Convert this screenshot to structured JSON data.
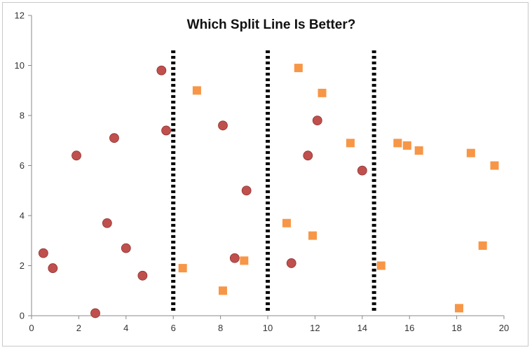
{
  "chart_data": {
    "type": "scatter",
    "title": "Which Split Line Is Better?",
    "xlabel": "",
    "ylabel": "",
    "xlim": [
      0,
      20
    ],
    "ylim": [
      0,
      12
    ],
    "x_ticks": [
      0,
      2,
      4,
      6,
      8,
      10,
      12,
      14,
      16,
      18,
      20
    ],
    "y_ticks": [
      0,
      2,
      4,
      6,
      8,
      10,
      12
    ],
    "grid": false,
    "legend": "none",
    "series": [
      {
        "marker": "circle",
        "color": "#c0504d",
        "points": [
          [
            0.5,
            2.5
          ],
          [
            0.9,
            1.9
          ],
          [
            1.9,
            6.4
          ],
          [
            2.7,
            0.1
          ],
          [
            3.2,
            3.7
          ],
          [
            3.5,
            7.1
          ],
          [
            4.0,
            2.7
          ],
          [
            4.7,
            1.6
          ],
          [
            5.5,
            9.8
          ],
          [
            5.7,
            7.4
          ],
          [
            8.1,
            7.6
          ],
          [
            8.6,
            2.3
          ],
          [
            9.1,
            5.0
          ],
          [
            11.0,
            2.1
          ],
          [
            11.7,
            6.4
          ],
          [
            12.1,
            7.8
          ],
          [
            14.0,
            5.8
          ]
        ]
      },
      {
        "marker": "square",
        "color": "#f79646",
        "points": [
          [
            6.4,
            1.9
          ],
          [
            7.0,
            9.0
          ],
          [
            8.1,
            1.0
          ],
          [
            9.0,
            2.2
          ],
          [
            10.8,
            3.7
          ],
          [
            11.3,
            9.9
          ],
          [
            11.9,
            3.2
          ],
          [
            12.3,
            8.9
          ],
          [
            13.5,
            6.9
          ],
          [
            14.8,
            2.0
          ],
          [
            15.5,
            6.9
          ],
          [
            15.9,
            6.8
          ],
          [
            16.4,
            6.6
          ],
          [
            18.1,
            0.3
          ],
          [
            18.6,
            6.5
          ],
          [
            19.1,
            2.8
          ],
          [
            19.6,
            6.0
          ]
        ]
      }
    ],
    "split_lines": [
      {
        "x": 6.0,
        "style": "dotted",
        "color": "#000000",
        "y_range": [
          0.2,
          10.6
        ]
      },
      {
        "x": 10.0,
        "style": "dotted",
        "color": "#000000",
        "y_range": [
          0.2,
          10.6
        ]
      },
      {
        "x": 14.5,
        "style": "dotted",
        "color": "#000000",
        "y_range": [
          0.2,
          10.6
        ]
      }
    ]
  }
}
